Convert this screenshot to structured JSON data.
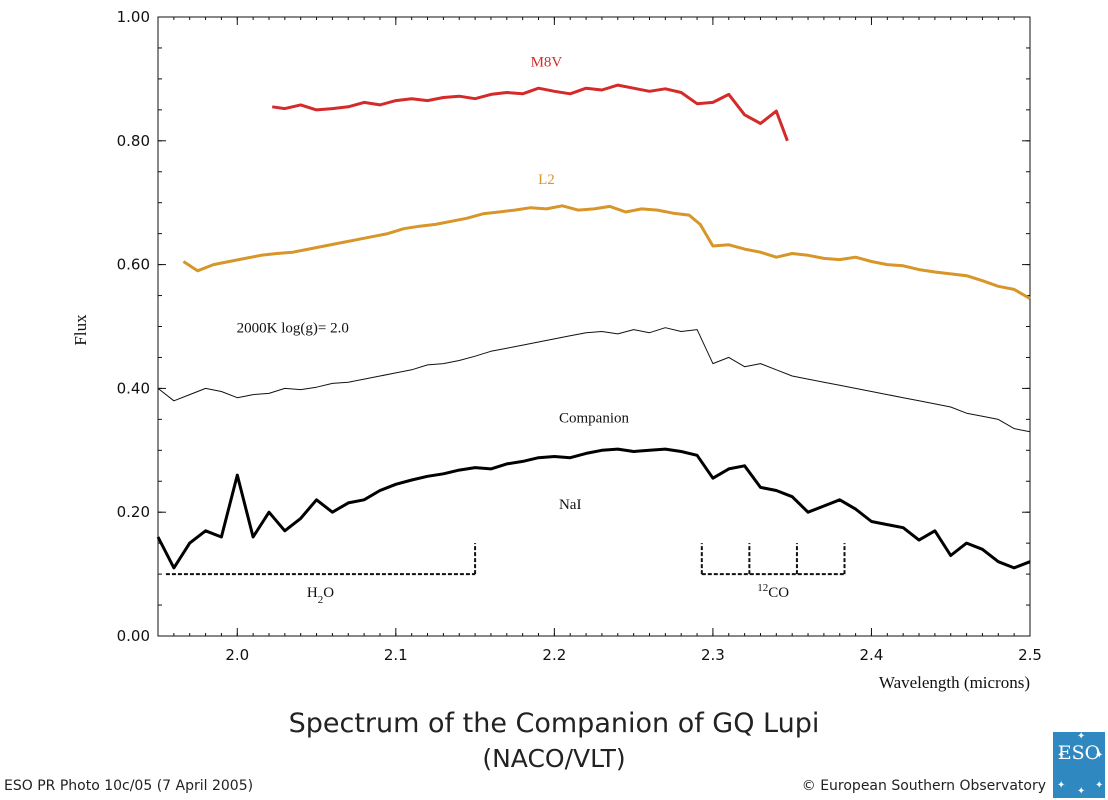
{
  "title": "Spectrum of the Companion of GQ Lupi",
  "subtitle": "(NACO/VLT)",
  "footer": {
    "photo_id": "ESO PR Photo 10c/05 (7 April 2005)",
    "copyright": "© European Southern Observatory",
    "logo_text": "ESO"
  },
  "chart_data": {
    "type": "line",
    "xlabel": "Wavelength (microns)",
    "ylabel": "Flux",
    "xlim": [
      1.95,
      2.5
    ],
    "ylim": [
      0.0,
      1.0
    ],
    "x_ticks": [
      "2.0",
      "2.1",
      "2.2",
      "2.3",
      "2.4",
      "2.5"
    ],
    "y_ticks": [
      "0.00",
      "0.20",
      "0.40",
      "0.60",
      "0.80",
      "1.00"
    ],
    "grid": false,
    "series": [
      {
        "name": "M8V",
        "color": "#d42a2a",
        "x": [
          2.022,
          2.03,
          2.04,
          2.05,
          2.06,
          2.07,
          2.08,
          2.09,
          2.1,
          2.11,
          2.12,
          2.13,
          2.14,
          2.15,
          2.16,
          2.17,
          2.18,
          2.19,
          2.2,
          2.21,
          2.22,
          2.23,
          2.24,
          2.25,
          2.26,
          2.27,
          2.28,
          2.29,
          2.3,
          2.31,
          2.32,
          2.33,
          2.34,
          2.347
        ],
        "y": [
          0.855,
          0.852,
          0.858,
          0.85,
          0.852,
          0.855,
          0.862,
          0.858,
          0.865,
          0.868,
          0.865,
          0.87,
          0.872,
          0.868,
          0.875,
          0.878,
          0.876,
          0.885,
          0.88,
          0.876,
          0.885,
          0.882,
          0.89,
          0.885,
          0.88,
          0.884,
          0.878,
          0.86,
          0.862,
          0.875,
          0.842,
          0.828,
          0.848,
          0.8
        ]
      },
      {
        "name": "L2",
        "color": "#d89528",
        "x": [
          1.966,
          1.975,
          1.985,
          1.995,
          2.005,
          2.015,
          2.025,
          2.035,
          2.045,
          2.055,
          2.065,
          2.075,
          2.085,
          2.095,
          2.105,
          2.115,
          2.125,
          2.135,
          2.145,
          2.155,
          2.165,
          2.175,
          2.185,
          2.195,
          2.205,
          2.215,
          2.225,
          2.235,
          2.245,
          2.255,
          2.265,
          2.275,
          2.285,
          2.292,
          2.3,
          2.31,
          2.32,
          2.33,
          2.34,
          2.35,
          2.36,
          2.37,
          2.38,
          2.39,
          2.4,
          2.41,
          2.42,
          2.43,
          2.44,
          2.45,
          2.46,
          2.47,
          2.48,
          2.49,
          2.5
        ],
        "y": [
          0.605,
          0.59,
          0.6,
          0.605,
          0.61,
          0.615,
          0.618,
          0.62,
          0.625,
          0.63,
          0.635,
          0.64,
          0.645,
          0.65,
          0.658,
          0.662,
          0.665,
          0.67,
          0.675,
          0.682,
          0.685,
          0.688,
          0.692,
          0.69,
          0.695,
          0.688,
          0.69,
          0.694,
          0.685,
          0.69,
          0.688,
          0.683,
          0.68,
          0.665,
          0.63,
          0.632,
          0.625,
          0.62,
          0.612,
          0.618,
          0.615,
          0.61,
          0.608,
          0.612,
          0.605,
          0.6,
          0.598,
          0.592,
          0.588,
          0.585,
          0.582,
          0.574,
          0.565,
          0.56,
          0.545
        ]
      },
      {
        "name": "2000K log(g)= 2.0",
        "color": "#111111",
        "x": [
          1.95,
          1.96,
          1.97,
          1.98,
          1.99,
          2.0,
          2.01,
          2.02,
          2.03,
          2.04,
          2.05,
          2.06,
          2.07,
          2.08,
          2.09,
          2.1,
          2.11,
          2.12,
          2.13,
          2.14,
          2.15,
          2.16,
          2.17,
          2.18,
          2.19,
          2.2,
          2.21,
          2.22,
          2.23,
          2.24,
          2.25,
          2.26,
          2.27,
          2.28,
          2.29,
          2.3,
          2.31,
          2.32,
          2.33,
          2.34,
          2.35,
          2.36,
          2.37,
          2.38,
          2.39,
          2.4,
          2.41,
          2.42,
          2.43,
          2.44,
          2.45,
          2.46,
          2.47,
          2.48,
          2.49,
          2.5
        ],
        "y": [
          0.4,
          0.38,
          0.39,
          0.4,
          0.395,
          0.385,
          0.39,
          0.392,
          0.4,
          0.398,
          0.402,
          0.408,
          0.41,
          0.415,
          0.42,
          0.425,
          0.43,
          0.438,
          0.44,
          0.445,
          0.452,
          0.46,
          0.465,
          0.47,
          0.475,
          0.48,
          0.485,
          0.49,
          0.492,
          0.488,
          0.495,
          0.49,
          0.498,
          0.492,
          0.495,
          0.44,
          0.45,
          0.435,
          0.44,
          0.43,
          0.42,
          0.415,
          0.41,
          0.405,
          0.4,
          0.395,
          0.39,
          0.385,
          0.38,
          0.375,
          0.37,
          0.36,
          0.355,
          0.35,
          0.335,
          0.33
        ]
      },
      {
        "name": "Companion",
        "color": "#000000",
        "x": [
          1.95,
          1.96,
          1.97,
          1.98,
          1.99,
          2.0,
          2.01,
          2.02,
          2.03,
          2.04,
          2.05,
          2.06,
          2.07,
          2.08,
          2.09,
          2.1,
          2.11,
          2.12,
          2.13,
          2.14,
          2.15,
          2.16,
          2.17,
          2.18,
          2.19,
          2.2,
          2.21,
          2.22,
          2.23,
          2.24,
          2.25,
          2.26,
          2.27,
          2.28,
          2.29,
          2.3,
          2.31,
          2.32,
          2.33,
          2.34,
          2.35,
          2.36,
          2.37,
          2.38,
          2.39,
          2.4,
          2.41,
          2.42,
          2.43,
          2.44,
          2.45,
          2.46,
          2.47,
          2.48,
          2.49,
          2.5
        ],
        "y": [
          0.16,
          0.11,
          0.15,
          0.17,
          0.16,
          0.26,
          0.16,
          0.2,
          0.17,
          0.19,
          0.22,
          0.2,
          0.215,
          0.22,
          0.235,
          0.245,
          0.252,
          0.258,
          0.262,
          0.268,
          0.272,
          0.27,
          0.278,
          0.282,
          0.288,
          0.29,
          0.288,
          0.295,
          0.3,
          0.302,
          0.298,
          0.3,
          0.302,
          0.298,
          0.292,
          0.255,
          0.27,
          0.275,
          0.24,
          0.235,
          0.225,
          0.2,
          0.21,
          0.22,
          0.205,
          0.185,
          0.18,
          0.175,
          0.155,
          0.17,
          0.13,
          0.15,
          0.14,
          0.12,
          0.11,
          0.12
        ]
      }
    ],
    "annotations": [
      {
        "text": "M8V",
        "x": 2.195,
        "y": 0.92
      },
      {
        "text": "L2",
        "x": 2.195,
        "y": 0.73
      },
      {
        "text": "2000K log(g)= 2.0",
        "x": 2.035,
        "y": 0.49
      },
      {
        "text": "Companion",
        "x": 2.225,
        "y": 0.345
      },
      {
        "text": "NaI",
        "x": 2.21,
        "y": 0.205
      }
    ],
    "band_markers": [
      {
        "label_main": "H",
        "label_sub": "2",
        "label_rest": "O",
        "x_start": 1.955,
        "x_end": 2.15,
        "ticks": [
          2.15
        ],
        "y_line": 0.1,
        "y_top": 0.15
      },
      {
        "label_sup": "12",
        "label_rest": "CO",
        "x_start": 2.293,
        "x_end": 2.383,
        "ticks": [
          2.293,
          2.323,
          2.353,
          2.383
        ],
        "y_line": 0.1,
        "y_top": 0.15
      }
    ]
  }
}
